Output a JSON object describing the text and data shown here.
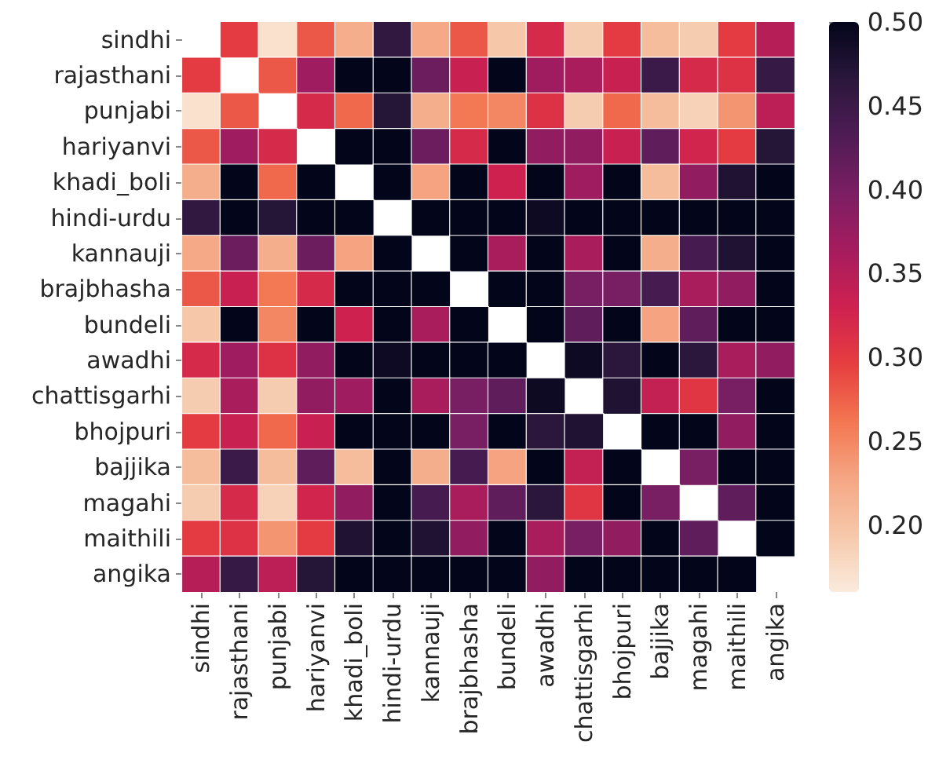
{
  "chart_data": {
    "type": "heatmap",
    "categories": [
      "sindhi",
      "rajasthani",
      "punjabi",
      "hariyanvi",
      "khadi_boli",
      "hindi-urdu",
      "kannauji",
      "brajbhasha",
      "bundeli",
      "awadhi",
      "chattisgarhi",
      "bhojpuri",
      "bajjika",
      "magahi",
      "maithili",
      "angika"
    ],
    "y_categories": [
      "sindhi",
      "rajasthani",
      "punjabi",
      "hariyanvi",
      "khadi_boli",
      "hindi-urdu",
      "kannauji",
      "brajbhasha",
      "bundeli",
      "awadhi",
      "chattisgarhi",
      "bhojpuri",
      "bajjika",
      "magahi",
      "maithili",
      "angika"
    ],
    "cells": [
      [
        null,
        0.3,
        0.17,
        0.28,
        0.22,
        0.46,
        0.225,
        0.28,
        0.195,
        0.32,
        0.19,
        0.3,
        0.205,
        0.19,
        0.3,
        0.35
      ],
      [
        0.3,
        null,
        0.28,
        0.37,
        0.5,
        0.5,
        0.41,
        0.335,
        0.5,
        0.37,
        0.36,
        0.335,
        0.45,
        0.32,
        0.31,
        0.455
      ],
      [
        0.17,
        0.28,
        null,
        0.32,
        0.27,
        0.47,
        0.22,
        0.26,
        0.25,
        0.31,
        0.19,
        0.27,
        0.205,
        0.185,
        0.24,
        0.345
      ],
      [
        0.28,
        0.37,
        0.32,
        null,
        0.5,
        0.5,
        0.41,
        0.32,
        0.5,
        0.38,
        0.38,
        0.335,
        0.42,
        0.325,
        0.3,
        0.47
      ],
      [
        0.22,
        0.5,
        0.27,
        0.5,
        null,
        0.5,
        0.23,
        0.5,
        0.33,
        0.5,
        0.37,
        0.5,
        0.205,
        0.38,
        0.475,
        0.5
      ],
      [
        0.46,
        0.5,
        0.47,
        0.5,
        0.5,
        null,
        0.5,
        0.5,
        0.5,
        0.49,
        0.5,
        0.5,
        0.5,
        0.5,
        0.5,
        0.5
      ],
      [
        0.225,
        0.41,
        0.22,
        0.41,
        0.23,
        0.5,
        null,
        0.5,
        0.36,
        0.5,
        0.36,
        0.5,
        0.22,
        0.44,
        0.475,
        0.5
      ],
      [
        0.28,
        0.335,
        0.26,
        0.32,
        0.5,
        0.5,
        0.5,
        null,
        0.5,
        0.5,
        0.4,
        0.4,
        0.44,
        0.36,
        0.38,
        0.5
      ],
      [
        0.195,
        0.5,
        0.25,
        0.5,
        0.33,
        0.5,
        0.36,
        0.5,
        null,
        0.5,
        0.42,
        0.5,
        0.23,
        0.42,
        0.5,
        0.5
      ],
      [
        0.32,
        0.37,
        0.31,
        0.38,
        0.5,
        0.49,
        0.5,
        0.5,
        0.5,
        null,
        0.49,
        0.465,
        0.5,
        0.465,
        0.36,
        0.38
      ],
      [
        0.19,
        0.36,
        0.19,
        0.38,
        0.37,
        0.5,
        0.36,
        0.4,
        0.42,
        0.49,
        null,
        0.475,
        0.34,
        0.305,
        0.4,
        0.5
      ],
      [
        0.3,
        0.335,
        0.27,
        0.335,
        0.5,
        0.5,
        0.5,
        0.4,
        0.5,
        0.465,
        0.475,
        null,
        0.5,
        0.5,
        0.38,
        0.5
      ],
      [
        0.205,
        0.45,
        0.205,
        0.42,
        0.205,
        0.5,
        0.22,
        0.44,
        0.23,
        0.5,
        0.34,
        0.5,
        null,
        0.4,
        0.5,
        0.5
      ],
      [
        0.19,
        0.32,
        0.185,
        0.325,
        0.38,
        0.5,
        0.44,
        0.36,
        0.42,
        0.465,
        0.305,
        0.5,
        0.4,
        null,
        0.42,
        0.5
      ],
      [
        0.3,
        0.31,
        0.24,
        0.3,
        0.475,
        0.5,
        0.475,
        0.38,
        0.5,
        0.36,
        0.4,
        0.38,
        0.5,
        0.42,
        null,
        0.5
      ],
      [
        0.35,
        0.455,
        0.345,
        0.47,
        0.5,
        0.5,
        0.5,
        0.5,
        0.5,
        0.38,
        0.5,
        0.5,
        0.5,
        0.5,
        0.5,
        null
      ]
    ],
    "clim": [
      0.16,
      0.5
    ],
    "cticks": [
      {
        "value": 0.2,
        "label": "0.20"
      },
      {
        "value": 0.25,
        "label": "0.25"
      },
      {
        "value": 0.3,
        "label": "0.30"
      },
      {
        "value": 0.35,
        "label": "0.35"
      },
      {
        "value": 0.4,
        "label": "0.40"
      },
      {
        "value": 0.45,
        "label": "0.45"
      },
      {
        "value": 0.5,
        "label": "0.50"
      }
    ]
  }
}
